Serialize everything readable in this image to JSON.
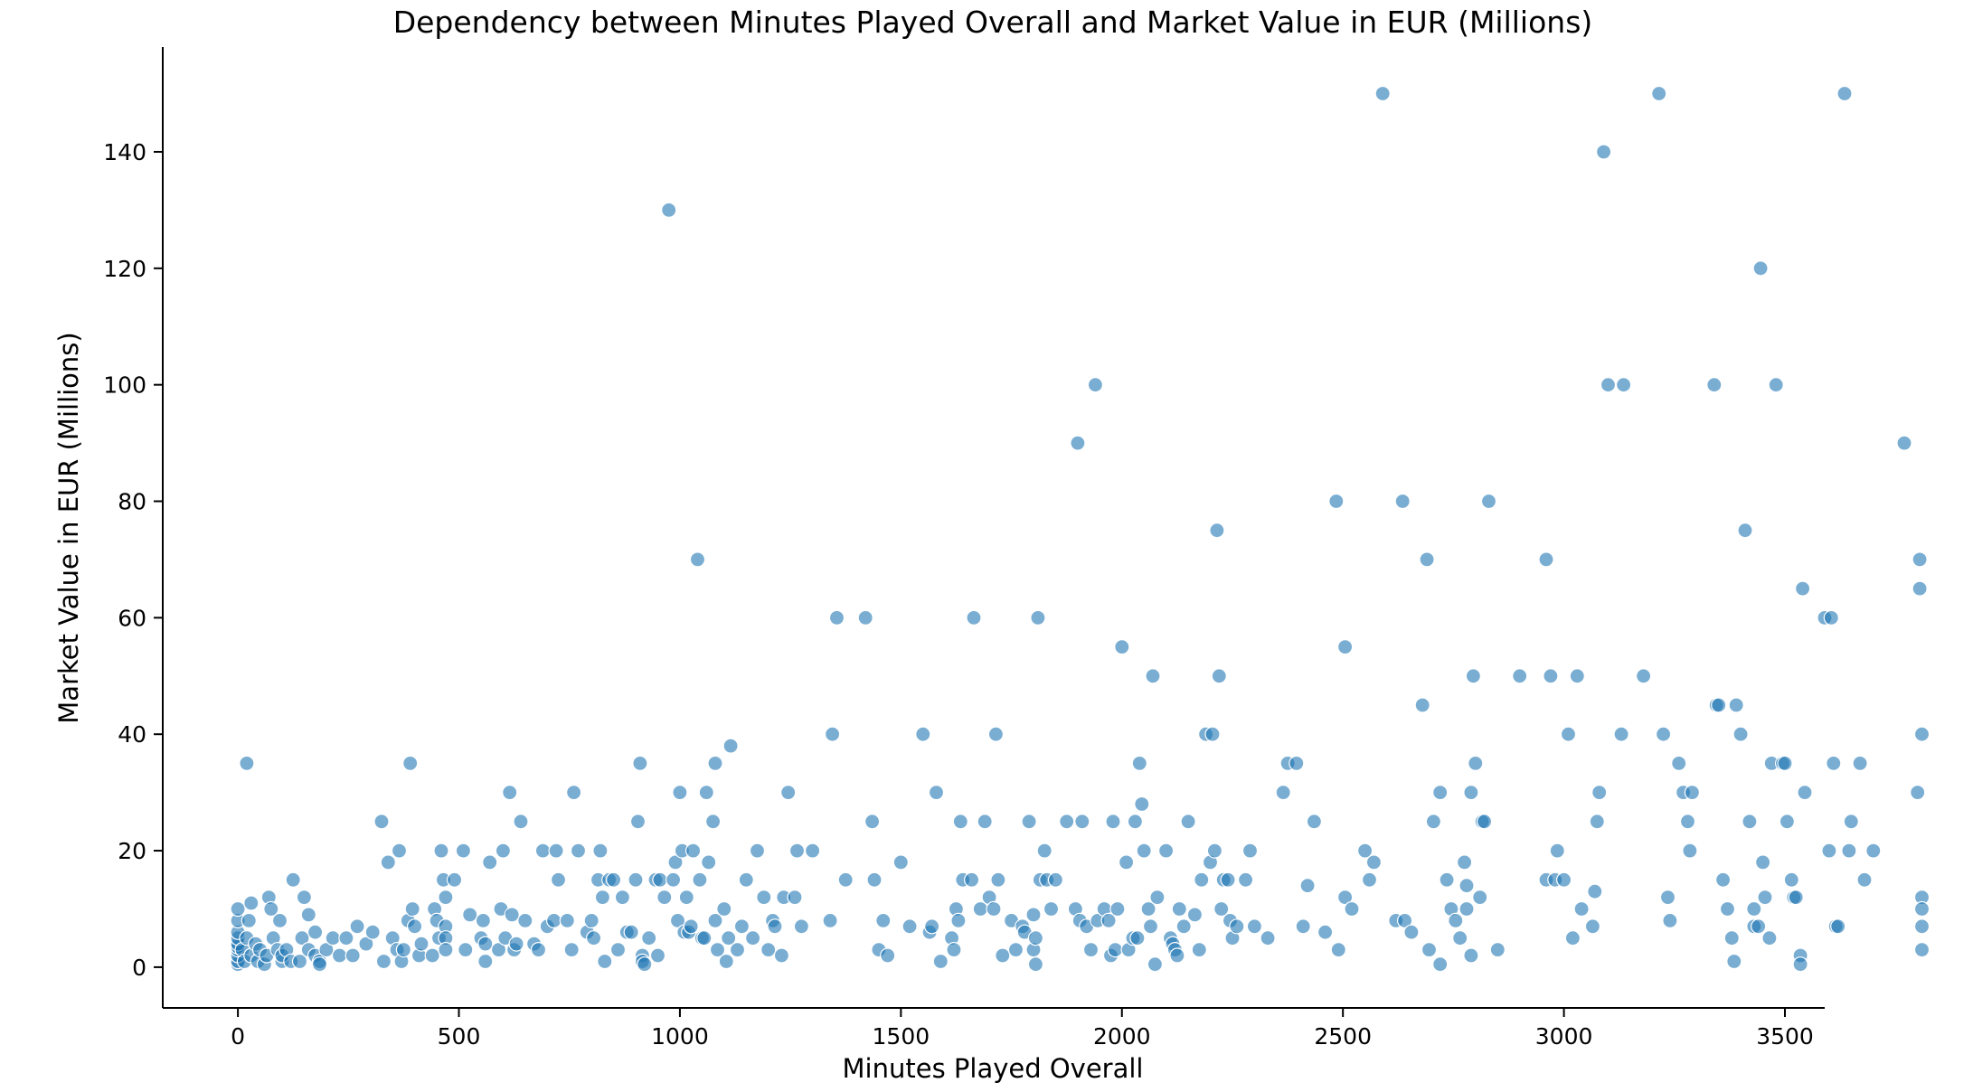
{
  "chart_data": {
    "type": "scatter",
    "title": "Dependency between Minutes Played Overall and Market Value in EUR (Millions)",
    "xlabel": "Minutes Played Overall",
    "ylabel": "Market Value in EUR (Millions)",
    "xlim": [
      -170,
      3590
    ],
    "ylim": [
      -7,
      158
    ],
    "xticks": [
      0,
      500,
      1000,
      1500,
      2000,
      2500,
      3000,
      3500
    ],
    "yticks": [
      0,
      20,
      40,
      60,
      80,
      100,
      120,
      140
    ],
    "grid": false,
    "marker_color": "#1f77b4",
    "points": [
      [
        0,
        0.5
      ],
      [
        0,
        1
      ],
      [
        0,
        2
      ],
      [
        0,
        3
      ],
      [
        0,
        3.5
      ],
      [
        0,
        4
      ],
      [
        0,
        5
      ],
      [
        0,
        6
      ],
      [
        0,
        8
      ],
      [
        0,
        10
      ],
      [
        20,
        35
      ],
      [
        10,
        3
      ],
      [
        15,
        1
      ],
      [
        20,
        5
      ],
      [
        25,
        8
      ],
      [
        30,
        11
      ],
      [
        30,
        2
      ],
      [
        40,
        4
      ],
      [
        45,
        1
      ],
      [
        50,
        3
      ],
      [
        60,
        0.5
      ],
      [
        65,
        2
      ],
      [
        70,
        12
      ],
      [
        75,
        10
      ],
      [
        80,
        5
      ],
      [
        90,
        3
      ],
      [
        95,
        8
      ],
      [
        100,
        1
      ],
      [
        100,
        2
      ],
      [
        110,
        3
      ],
      [
        120,
        1
      ],
      [
        125,
        15
      ],
      [
        140,
        1
      ],
      [
        145,
        5
      ],
      [
        150,
        12
      ],
      [
        160,
        9
      ],
      [
        160,
        3
      ],
      [
        175,
        6
      ],
      [
        175,
        2
      ],
      [
        185,
        1
      ],
      [
        185,
        0.5
      ],
      [
        200,
        3
      ],
      [
        215,
        5
      ],
      [
        230,
        2
      ],
      [
        245,
        5
      ],
      [
        260,
        2
      ],
      [
        270,
        7
      ],
      [
        290,
        4
      ],
      [
        305,
        6
      ],
      [
        325,
        25
      ],
      [
        330,
        1
      ],
      [
        340,
        18
      ],
      [
        350,
        5
      ],
      [
        360,
        3
      ],
      [
        365,
        20
      ],
      [
        370,
        1
      ],
      [
        375,
        3
      ],
      [
        385,
        8
      ],
      [
        390,
        35
      ],
      [
        395,
        10
      ],
      [
        400,
        7
      ],
      [
        410,
        2
      ],
      [
        415,
        4
      ],
      [
        440,
        2
      ],
      [
        445,
        10
      ],
      [
        450,
        8
      ],
      [
        455,
        5
      ],
      [
        460,
        20
      ],
      [
        465,
        15
      ],
      [
        470,
        12
      ],
      [
        470,
        7
      ],
      [
        470,
        5
      ],
      [
        470,
        3
      ],
      [
        490,
        15
      ],
      [
        510,
        20
      ],
      [
        515,
        3
      ],
      [
        525,
        9
      ],
      [
        550,
        5
      ],
      [
        555,
        8
      ],
      [
        560,
        4
      ],
      [
        560,
        1
      ],
      [
        570,
        18
      ],
      [
        590,
        3
      ],
      [
        595,
        10
      ],
      [
        600,
        20
      ],
      [
        605,
        5
      ],
      [
        615,
        30
      ],
      [
        620,
        9
      ],
      [
        625,
        3
      ],
      [
        630,
        4
      ],
      [
        640,
        25
      ],
      [
        650,
        8
      ],
      [
        670,
        4
      ],
      [
        680,
        3
      ],
      [
        690,
        20
      ],
      [
        700,
        7
      ],
      [
        715,
        8
      ],
      [
        720,
        20
      ],
      [
        725,
        15
      ],
      [
        745,
        8
      ],
      [
        755,
        3
      ],
      [
        760,
        30
      ],
      [
        770,
        20
      ],
      [
        790,
        6
      ],
      [
        800,
        8
      ],
      [
        805,
        5
      ],
      [
        815,
        15
      ],
      [
        820,
        20
      ],
      [
        825,
        12
      ],
      [
        830,
        1
      ],
      [
        840,
        15
      ],
      [
        850,
        15
      ],
      [
        860,
        3
      ],
      [
        870,
        12
      ],
      [
        880,
        6
      ],
      [
        890,
        6
      ],
      [
        900,
        15
      ],
      [
        905,
        25
      ],
      [
        910,
        35
      ],
      [
        915,
        2
      ],
      [
        915,
        1
      ],
      [
        920,
        0.5
      ],
      [
        930,
        5
      ],
      [
        945,
        15
      ],
      [
        950,
        2
      ],
      [
        955,
        15
      ],
      [
        965,
        12
      ],
      [
        975,
        130
      ],
      [
        985,
        15
      ],
      [
        990,
        18
      ],
      [
        995,
        8
      ],
      [
        1000,
        30
      ],
      [
        1005,
        20
      ],
      [
        1010,
        6
      ],
      [
        1015,
        12
      ],
      [
        1020,
        6
      ],
      [
        1025,
        7
      ],
      [
        1030,
        20
      ],
      [
        1040,
        70
      ],
      [
        1045,
        15
      ],
      [
        1050,
        5
      ],
      [
        1055,
        5
      ],
      [
        1060,
        30
      ],
      [
        1065,
        18
      ],
      [
        1075,
        25
      ],
      [
        1080,
        35
      ],
      [
        1080,
        8
      ],
      [
        1085,
        3
      ],
      [
        1100,
        10
      ],
      [
        1105,
        1
      ],
      [
        1110,
        5
      ],
      [
        1115,
        38
      ],
      [
        1130,
        3
      ],
      [
        1140,
        7
      ],
      [
        1150,
        15
      ],
      [
        1165,
        5
      ],
      [
        1175,
        20
      ],
      [
        1190,
        12
      ],
      [
        1200,
        3
      ],
      [
        1210,
        8
      ],
      [
        1215,
        7
      ],
      [
        1230,
        2
      ],
      [
        1235,
        12
      ],
      [
        1245,
        30
      ],
      [
        1260,
        12
      ],
      [
        1265,
        20
      ],
      [
        1275,
        7
      ],
      [
        1300,
        20
      ],
      [
        1340,
        8
      ],
      [
        1345,
        40
      ],
      [
        1355,
        60
      ],
      [
        1375,
        15
      ],
      [
        1420,
        60
      ],
      [
        1435,
        25
      ],
      [
        1440,
        15
      ],
      [
        1450,
        3
      ],
      [
        1460,
        8
      ],
      [
        1470,
        2
      ],
      [
        1500,
        18
      ],
      [
        1520,
        7
      ],
      [
        1550,
        40
      ],
      [
        1565,
        6
      ],
      [
        1570,
        7
      ],
      [
        1580,
        30
      ],
      [
        1590,
        1
      ],
      [
        1615,
        5
      ],
      [
        1620,
        3
      ],
      [
        1625,
        10
      ],
      [
        1630,
        8
      ],
      [
        1635,
        25
      ],
      [
        1640,
        15
      ],
      [
        1660,
        15
      ],
      [
        1665,
        60
      ],
      [
        1680,
        10
      ],
      [
        1690,
        25
      ],
      [
        1700,
        12
      ],
      [
        1710,
        10
      ],
      [
        1715,
        40
      ],
      [
        1720,
        15
      ],
      [
        1730,
        2
      ],
      [
        1750,
        8
      ],
      [
        1760,
        3
      ],
      [
        1775,
        7
      ],
      [
        1780,
        6
      ],
      [
        1790,
        25
      ],
      [
        1800,
        3
      ],
      [
        1800,
        9
      ],
      [
        1805,
        5
      ],
      [
        1805,
        0.5
      ],
      [
        1810,
        60
      ],
      [
        1815,
        15
      ],
      [
        1825,
        20
      ],
      [
        1830,
        15
      ],
      [
        1840,
        10
      ],
      [
        1850,
        15
      ],
      [
        1875,
        25
      ],
      [
        1895,
        10
      ],
      [
        1900,
        90
      ],
      [
        1905,
        8
      ],
      [
        1910,
        25
      ],
      [
        1920,
        7
      ],
      [
        1930,
        3
      ],
      [
        1940,
        100
      ],
      [
        1945,
        8
      ],
      [
        1960,
        10
      ],
      [
        1970,
        8
      ],
      [
        1975,
        2
      ],
      [
        1980,
        25
      ],
      [
        1985,
        3
      ],
      [
        1990,
        10
      ],
      [
        2000,
        55
      ],
      [
        2010,
        18
      ],
      [
        2015,
        3
      ],
      [
        2025,
        5
      ],
      [
        2030,
        25
      ],
      [
        2035,
        5
      ],
      [
        2040,
        35
      ],
      [
        2045,
        28
      ],
      [
        2050,
        20
      ],
      [
        2060,
        10
      ],
      [
        2065,
        7
      ],
      [
        2070,
        50
      ],
      [
        2075,
        0.5
      ],
      [
        2080,
        12
      ],
      [
        2100,
        20
      ],
      [
        2110,
        5
      ],
      [
        2115,
        4
      ],
      [
        2120,
        3
      ],
      [
        2125,
        2
      ],
      [
        2130,
        10
      ],
      [
        2140,
        7
      ],
      [
        2150,
        25
      ],
      [
        2165,
        9
      ],
      [
        2175,
        3
      ],
      [
        2180,
        15
      ],
      [
        2190,
        40
      ],
      [
        2200,
        18
      ],
      [
        2205,
        40
      ],
      [
        2210,
        20
      ],
      [
        2215,
        75
      ],
      [
        2220,
        50
      ],
      [
        2225,
        10
      ],
      [
        2230,
        15
      ],
      [
        2240,
        15
      ],
      [
        2245,
        8
      ],
      [
        2250,
        5
      ],
      [
        2260,
        7
      ],
      [
        2280,
        15
      ],
      [
        2290,
        20
      ],
      [
        2300,
        7
      ],
      [
        2330,
        5
      ],
      [
        2365,
        30
      ],
      [
        2375,
        35
      ],
      [
        2395,
        35
      ],
      [
        2410,
        7
      ],
      [
        2420,
        14
      ],
      [
        2435,
        25
      ],
      [
        2460,
        6
      ],
      [
        2485,
        80
      ],
      [
        2490,
        3
      ],
      [
        2505,
        55
      ],
      [
        2505,
        12
      ],
      [
        2520,
        10
      ],
      [
        2550,
        20
      ],
      [
        2560,
        15
      ],
      [
        2570,
        18
      ],
      [
        2590,
        150
      ],
      [
        2620,
        8
      ],
      [
        2635,
        80
      ],
      [
        2640,
        8
      ],
      [
        2655,
        6
      ],
      [
        2680,
        45
      ],
      [
        2690,
        70
      ],
      [
        2695,
        3
      ],
      [
        2705,
        25
      ],
      [
        2720,
        30
      ],
      [
        2720,
        0.5
      ],
      [
        2735,
        15
      ],
      [
        2745,
        10
      ],
      [
        2755,
        8
      ],
      [
        2765,
        5
      ],
      [
        2775,
        18
      ],
      [
        2780,
        14
      ],
      [
        2780,
        10
      ],
      [
        2790,
        2
      ],
      [
        2790,
        30
      ],
      [
        2795,
        50
      ],
      [
        2800,
        35
      ],
      [
        2810,
        12
      ],
      [
        2815,
        25
      ],
      [
        2820,
        25
      ],
      [
        2830,
        80
      ],
      [
        2850,
        3
      ],
      [
        2900,
        50
      ],
      [
        2960,
        70
      ],
      [
        2960,
        15
      ],
      [
        2970,
        50
      ],
      [
        2980,
        15
      ],
      [
        2985,
        20
      ],
      [
        3000,
        15
      ],
      [
        3010,
        40
      ],
      [
        3020,
        5
      ],
      [
        3030,
        50
      ],
      [
        3040,
        10
      ],
      [
        3065,
        7
      ],
      [
        3070,
        13
      ],
      [
        3075,
        25
      ],
      [
        3080,
        30
      ],
      [
        3090,
        140
      ],
      [
        3100,
        100
      ],
      [
        3130,
        40
      ],
      [
        3135,
        100
      ],
      [
        3180,
        50
      ],
      [
        3215,
        150
      ],
      [
        3225,
        40
      ],
      [
        3235,
        12
      ],
      [
        3240,
        8
      ],
      [
        3260,
        35
      ],
      [
        3270,
        30
      ],
      [
        3280,
        25
      ],
      [
        3285,
        20
      ],
      [
        3290,
        30
      ],
      [
        3340,
        100
      ],
      [
        3345,
        45
      ],
      [
        3350,
        45
      ],
      [
        3360,
        15
      ],
      [
        3370,
        10
      ],
      [
        3380,
        5
      ],
      [
        3385,
        1
      ],
      [
        3390,
        45
      ],
      [
        3400,
        40
      ],
      [
        3410,
        75
      ],
      [
        3420,
        25
      ],
      [
        3430,
        10
      ],
      [
        3430,
        7
      ],
      [
        3440,
        7
      ],
      [
        3445,
        120
      ],
      [
        3450,
        18
      ],
      [
        3455,
        12
      ],
      [
        3465,
        5
      ],
      [
        3480,
        100
      ],
      [
        3470,
        35
      ],
      [
        3495,
        35
      ],
      [
        3500,
        35
      ],
      [
        3505,
        25
      ],
      [
        3515,
        15
      ],
      [
        3520,
        12
      ],
      [
        3525,
        12
      ],
      [
        3535,
        2
      ],
      [
        3535,
        0.5
      ],
      [
        3540,
        65
      ],
      [
        3545,
        30
      ],
      [
        3590,
        60
      ],
      [
        3600,
        20
      ],
      [
        3605,
        60
      ],
      [
        3610,
        35
      ],
      [
        3615,
        7
      ],
      [
        3620,
        7
      ],
      [
        3635,
        150
      ],
      [
        3645,
        20
      ],
      [
        3650,
        25
      ],
      [
        3670,
        35
      ],
      [
        3680,
        15
      ],
      [
        3700,
        20
      ],
      [
        3770,
        90
      ],
      [
        3800,
        30
      ],
      [
        3805,
        70
      ],
      [
        3805,
        65
      ],
      [
        3810,
        40
      ],
      [
        3810,
        12
      ],
      [
        3810,
        10
      ],
      [
        3810,
        7
      ],
      [
        3810,
        3
      ]
    ]
  }
}
